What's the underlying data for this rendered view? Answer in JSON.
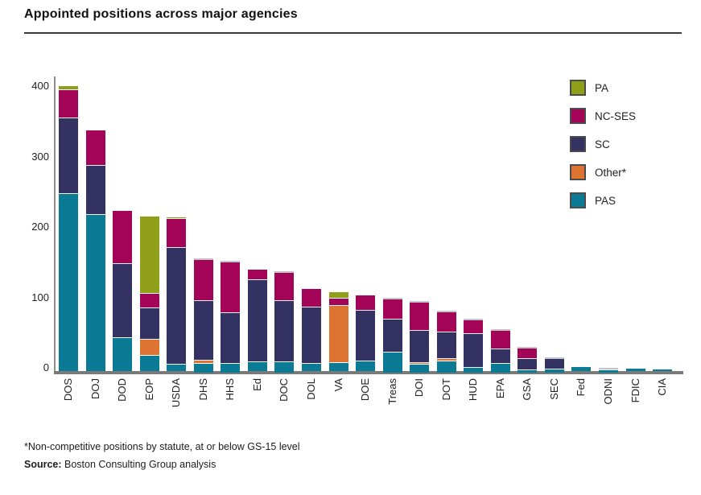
{
  "page": {
    "title": "Appointed positions across major agencies"
  },
  "footnotes": {
    "note": "*Non-competitive positions by statute, at or below GS-15 level",
    "source_label": "Source:",
    "source_text": " Boston Consulting Group analysis"
  },
  "colors": {
    "axis": "#7a7a7a",
    "spine": "#8f8f8f",
    "bar_cap_gray": "#c3c5cd",
    "text": "#222222"
  },
  "chart_data": {
    "type": "bar",
    "stacked": true,
    "title": "Appointed positions across major agencies",
    "grid": false,
    "categories": [
      "DOS",
      "DOJ",
      "DOD",
      "EOP",
      "USDA",
      "DHS",
      "HHS",
      "Ed",
      "DOC",
      "DOL",
      "VA",
      "DOE",
      "Treas",
      "DOI",
      "DOT",
      "HUD",
      "EPA",
      "GSA",
      "SEC",
      "Fed",
      "ODNI",
      "FDIC",
      "CIA"
    ],
    "series": [
      {
        "name": "PAS",
        "color": "#0b7b95",
        "values": [
          252,
          222,
          47,
          22,
          9,
          12,
          13,
          12,
          15,
          10,
          11,
          14,
          29,
          11,
          16,
          7,
          12,
          3,
          4,
          6,
          4,
          3,
          2
        ]
      },
      {
        "name": "Other*",
        "color": "#dd7431",
        "values": [
          0,
          0,
          0,
          23,
          0,
          5,
          0,
          0,
          0,
          0,
          82,
          0,
          0,
          3,
          3,
          0,
          0,
          0,
          0,
          0,
          0,
          0,
          0
        ]
      },
      {
        "name": "SC",
        "color": "#343163",
        "values": [
          107,
          70,
          105,
          44,
          166,
          85,
          72,
          117,
          87,
          80,
          0,
          72,
          46,
          46,
          38,
          48,
          21,
          17,
          16,
          0,
          1,
          0,
          0
        ]
      },
      {
        "name": "NC-SES",
        "color": "#a30457",
        "values": [
          40,
          50,
          76,
          21,
          41,
          58,
          72,
          15,
          40,
          27,
          10,
          22,
          29,
          40,
          29,
          19,
          27,
          14,
          0,
          0,
          0,
          0,
          0
        ]
      },
      {
        "name": "PA",
        "color": "#8f9f1a",
        "values": [
          6,
          0,
          0,
          110,
          3,
          0,
          0,
          0,
          0,
          0,
          9,
          0,
          0,
          0,
          0,
          0,
          0,
          0,
          0,
          0,
          0,
          0,
          0
        ]
      }
    ],
    "totals": [
      405,
      342,
      228,
      220,
      219,
      160,
      157,
      144,
      142,
      117,
      112,
      108,
      104,
      100,
      86,
      74,
      60,
      34,
      20,
      6,
      5,
      3,
      2
    ],
    "y_axis": {
      "ticks": [
        0,
        100,
        200,
        300,
        400
      ],
      "range": [
        0,
        420
      ],
      "label": ""
    },
    "x_axis": {
      "label": "",
      "tick_rotation_deg": 90
    },
    "legend": {
      "position": "top-right",
      "order_top_to_bottom": [
        "PA",
        "NC-SES",
        "SC",
        "Other*",
        "PAS"
      ]
    },
    "gray_cap_bars": [
      "DHS",
      "HHS",
      "DOC",
      "Treas",
      "DOI",
      "DOT",
      "HUD",
      "EPA",
      "GSA",
      "SEC",
      "ODNI"
    ]
  }
}
